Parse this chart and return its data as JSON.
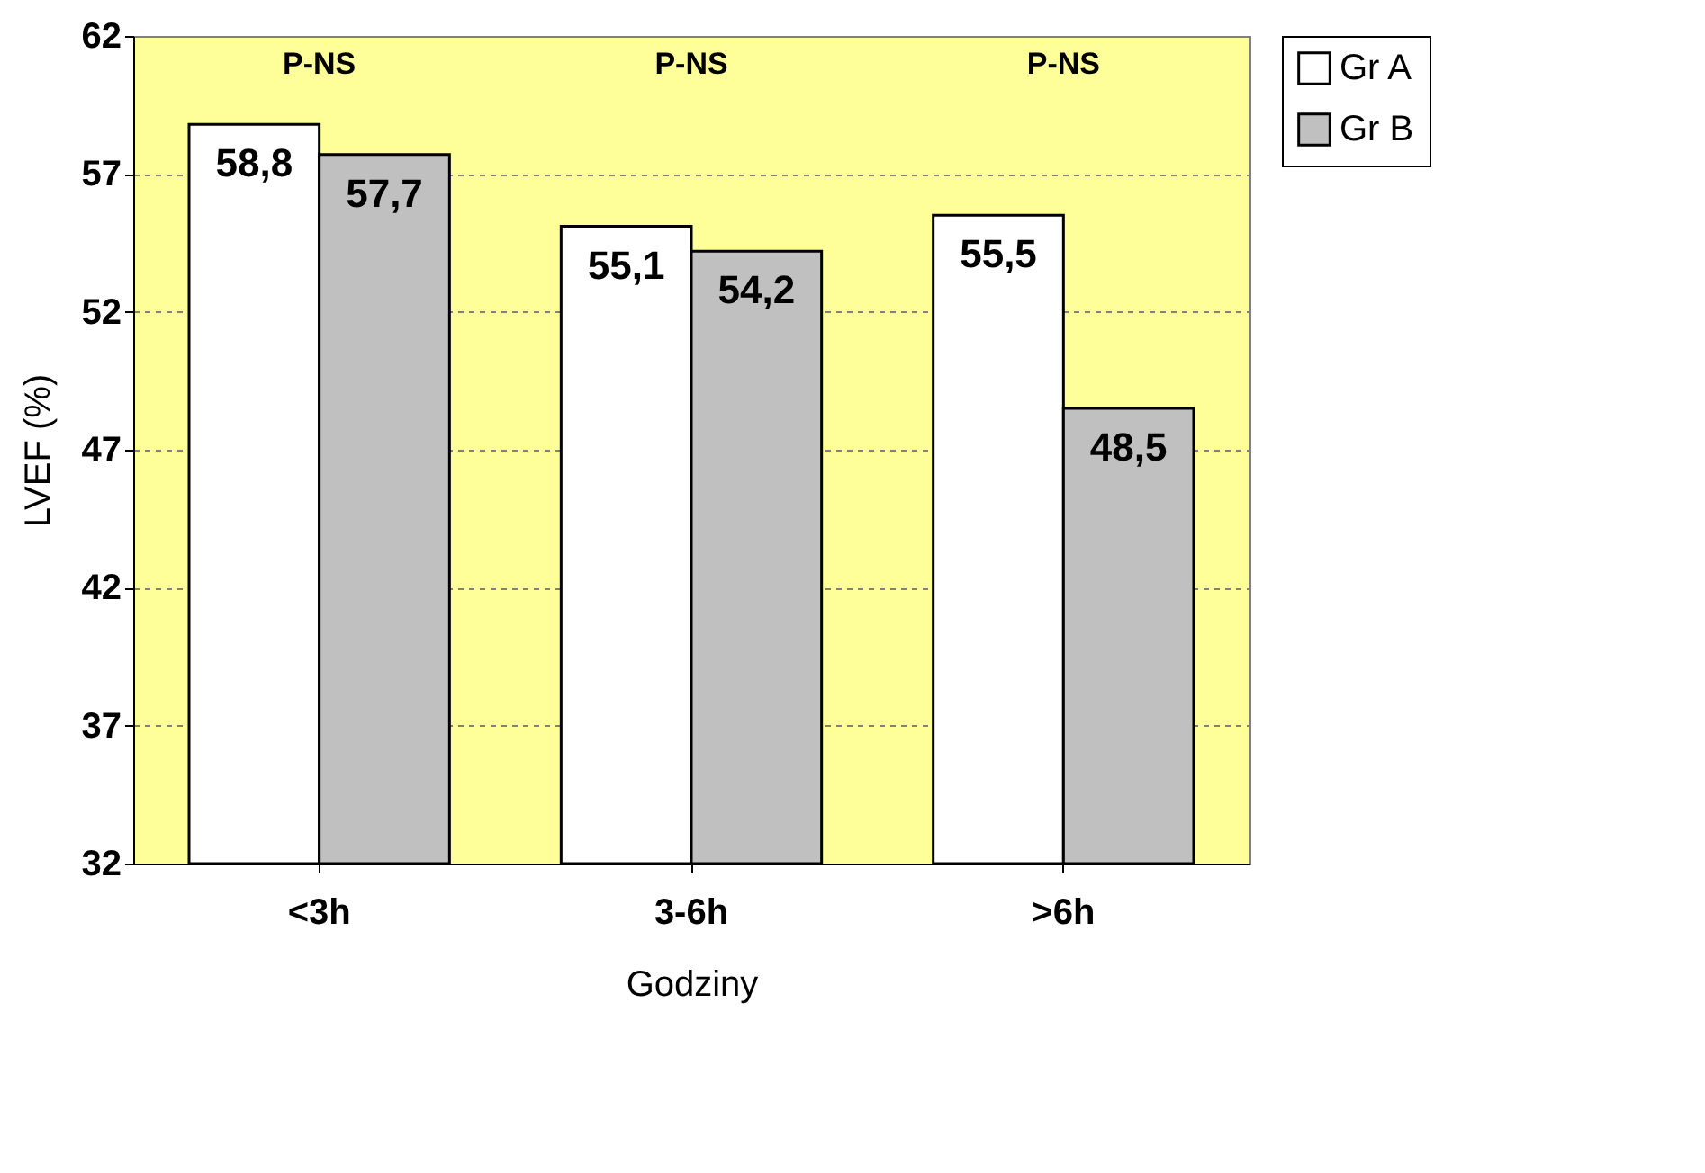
{
  "chart_data": {
    "type": "bar",
    "xlabel": "Godziny",
    "ylabel": "LVEF (%)",
    "categories": [
      "<3h",
      "3-6h",
      ">6h"
    ],
    "series": [
      {
        "name": "Gr A",
        "color": "#ffffff",
        "values": [
          58.8,
          55.1,
          55.5
        ],
        "value_labels": [
          "58,8",
          "55,1",
          "55,5"
        ]
      },
      {
        "name": "Gr B",
        "color": "#c0c0c0",
        "values": [
          57.7,
          54.2,
          48.5
        ],
        "value_labels": [
          "57,7",
          "54,2",
          "48,5"
        ]
      }
    ],
    "ylim": [
      32,
      62
    ],
    "yticks": [
      32,
      37,
      42,
      47,
      52,
      57,
      62
    ],
    "grid": "y",
    "legend": "right",
    "annotations": [
      "P-NS",
      "P-NS",
      "P-NS"
    ]
  }
}
